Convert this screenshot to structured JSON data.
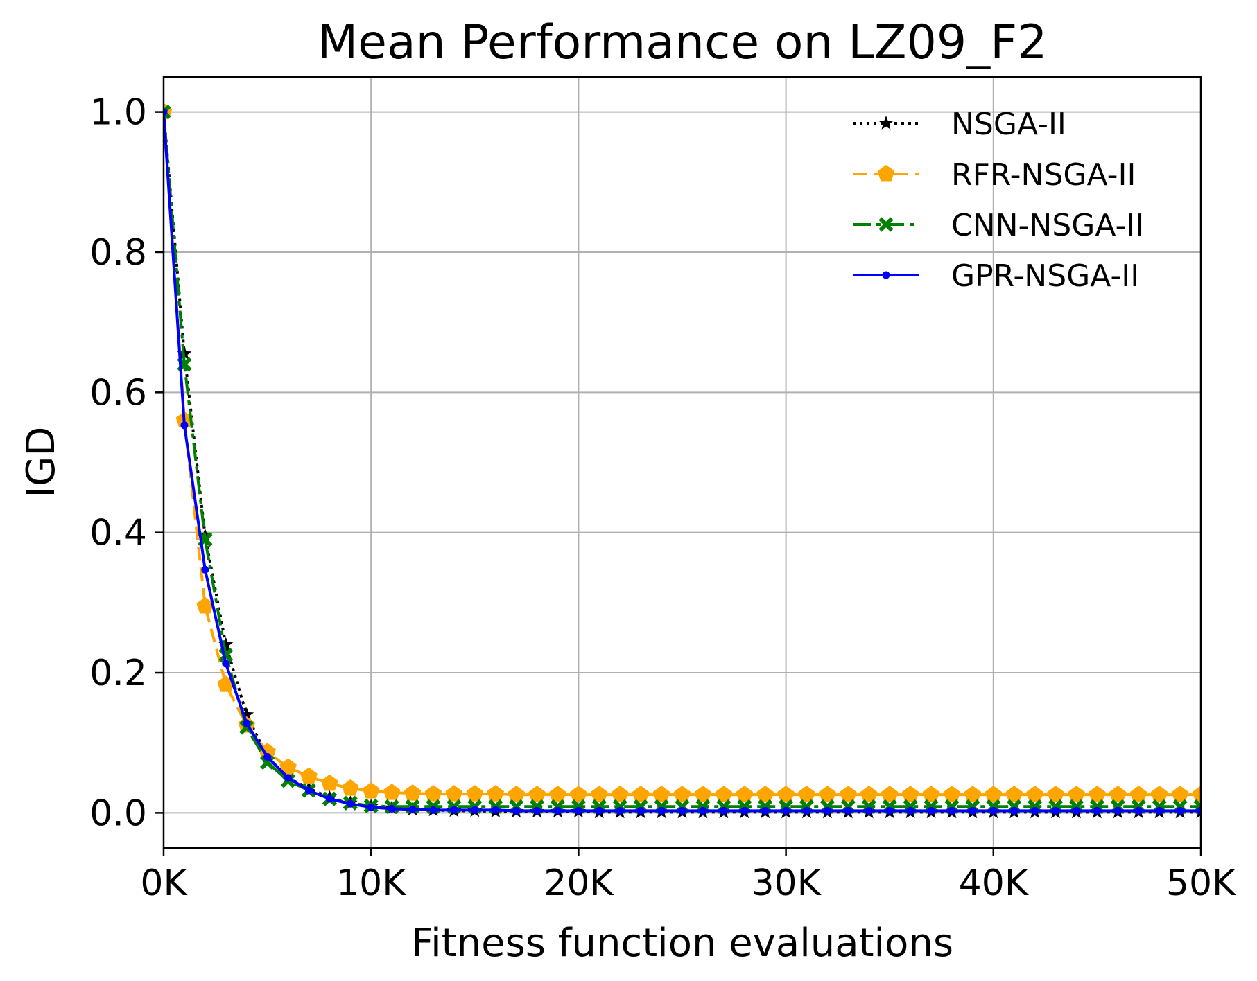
{
  "chart_data": {
    "type": "line",
    "title": "Mean Performance on LZ09_F2",
    "xlabel": "Fitness function evaluations",
    "ylabel": "IGD",
    "xlim": [
      0,
      50000
    ],
    "ylim": [
      -0.05,
      1.05
    ],
    "xticks": [
      0,
      10000,
      20000,
      30000,
      40000,
      50000
    ],
    "xtick_labels": [
      "0K",
      "10K",
      "20K",
      "30K",
      "40K",
      "50K"
    ],
    "yticks": [
      0.0,
      0.2,
      0.4,
      0.6,
      0.8,
      1.0
    ],
    "ytick_labels": [
      "0.0",
      "0.2",
      "0.4",
      "0.6",
      "0.8",
      "1.0"
    ],
    "grid": true,
    "legend_position": "top-right",
    "x": [
      0,
      1000,
      2000,
      3000,
      4000,
      5000,
      6000,
      7000,
      8000,
      9000,
      10000,
      11000,
      12000,
      13000,
      14000,
      15000,
      16000,
      17000,
      18000,
      19000,
      20000,
      21000,
      22000,
      23000,
      24000,
      25000,
      26000,
      27000,
      28000,
      29000,
      30000,
      31000,
      32000,
      33000,
      34000,
      35000,
      36000,
      37000,
      38000,
      39000,
      40000,
      41000,
      42000,
      43000,
      44000,
      45000,
      46000,
      47000,
      48000,
      49000,
      50000
    ],
    "series": [
      {
        "name": "NSGA-II",
        "color": "#000000",
        "linestyle": "dotted",
        "marker": "star",
        "values": [
          1.0,
          0.655,
          0.395,
          0.24,
          0.14,
          0.08,
          0.05,
          0.035,
          0.022,
          0.014,
          0.009,
          0.007,
          0.005,
          0.004,
          0.003,
          0.003,
          0.002,
          0.002,
          0.002,
          0.002,
          0.002,
          0.001,
          0.001,
          0.001,
          0.001,
          0.001,
          0.001,
          0.001,
          0.001,
          0.001,
          0.001,
          0.001,
          0.001,
          0.001,
          0.001,
          0.001,
          0.001,
          0.001,
          0.001,
          0.001,
          0.001,
          0.001,
          0.001,
          0.001,
          0.001,
          0.001,
          0.001,
          0.001,
          0.001,
          0.001,
          0.001
        ]
      },
      {
        "name": "RFR-NSGA-II",
        "color": "#ffa500",
        "linestyle": "dashed",
        "marker": "pentagon",
        "values": [
          1.0,
          0.56,
          0.295,
          0.183,
          0.125,
          0.087,
          0.065,
          0.052,
          0.042,
          0.035,
          0.031,
          0.029,
          0.028,
          0.027,
          0.027,
          0.027,
          0.027,
          0.026,
          0.026,
          0.026,
          0.026,
          0.026,
          0.026,
          0.026,
          0.026,
          0.026,
          0.026,
          0.026,
          0.026,
          0.026,
          0.026,
          0.026,
          0.026,
          0.026,
          0.026,
          0.026,
          0.026,
          0.026,
          0.026,
          0.026,
          0.026,
          0.026,
          0.026,
          0.026,
          0.026,
          0.026,
          0.026,
          0.026,
          0.026,
          0.026,
          0.026
        ]
      },
      {
        "name": "CNN-NSGA-II",
        "color": "#008000",
        "linestyle": "dashdot",
        "marker": "x",
        "values": [
          1.0,
          0.64,
          0.39,
          0.225,
          0.122,
          0.072,
          0.046,
          0.032,
          0.02,
          0.014,
          0.01,
          0.009,
          0.009,
          0.009,
          0.009,
          0.009,
          0.009,
          0.009,
          0.009,
          0.009,
          0.009,
          0.009,
          0.009,
          0.009,
          0.009,
          0.009,
          0.009,
          0.009,
          0.009,
          0.009,
          0.009,
          0.009,
          0.009,
          0.009,
          0.009,
          0.009,
          0.009,
          0.009,
          0.009,
          0.009,
          0.009,
          0.009,
          0.009,
          0.009,
          0.009,
          0.009,
          0.009,
          0.009,
          0.009,
          0.009,
          0.009
        ]
      },
      {
        "name": "GPR-NSGA-II",
        "color": "#0000ff",
        "linestyle": "solid",
        "marker": "dot",
        "values": [
          1.0,
          0.553,
          0.347,
          0.213,
          0.128,
          0.08,
          0.05,
          0.032,
          0.02,
          0.013,
          0.008,
          0.006,
          0.005,
          0.004,
          0.004,
          0.004,
          0.004,
          0.003,
          0.003,
          0.003,
          0.003,
          0.003,
          0.003,
          0.003,
          0.003,
          0.003,
          0.003,
          0.003,
          0.003,
          0.003,
          0.003,
          0.003,
          0.003,
          0.003,
          0.003,
          0.003,
          0.003,
          0.003,
          0.003,
          0.003,
          0.003,
          0.003,
          0.003,
          0.003,
          0.003,
          0.003,
          0.003,
          0.003,
          0.003,
          0.003,
          0.003
        ]
      }
    ]
  }
}
